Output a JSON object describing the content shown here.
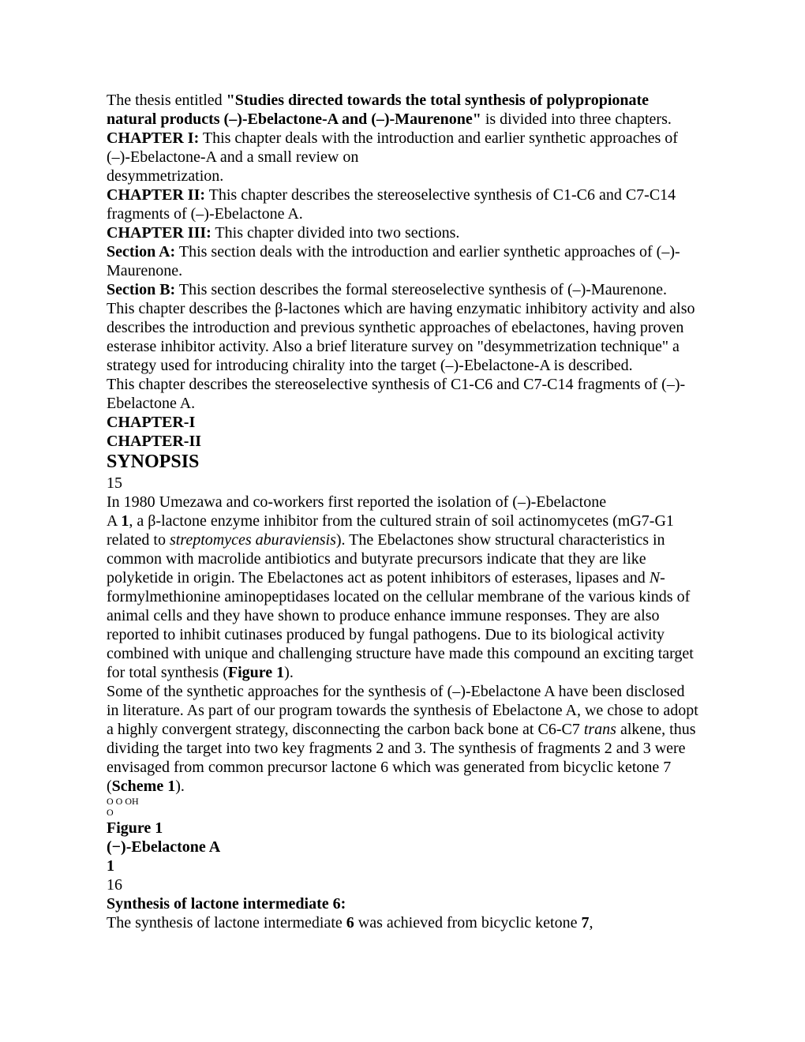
{
  "p1_a": "The thesis entitled ",
  "p1_b": "\"Studies directed towards the total synthesis of polypropionate natural products (–)-Ebelactone-A and (–)-Maurenone\"",
  "p1_c": " is divided into three chapters.",
  "p2_a": "CHAPTER I:",
  "p2_b": " This chapter deals with the introduction and earlier synthetic approaches of (–)-Ebelactone-A and a small review on",
  "p2_c": "desymmetrization.",
  "p3_a": "CHAPTER II:",
  "p3_b": " This chapter describes the stereoselective synthesis of C1-C6 and C7-C14 fragments of (–)-Ebelactone A.",
  "p4_a": "CHAPTER III:",
  "p4_b": " This chapter divided into two sections.",
  "p5_a": "Section A:",
  "p5_b": " This section deals with the introduction and earlier synthetic approaches of (–)-Maurenone.",
  "p6_a": "Section B:",
  "p6_b": " This section describes the formal stereoselective synthesis of (–)-Maurenone.",
  "p7_a": "This chapter describes the ",
  "p7_b": "β",
  "p7_c": "-lactones which are having enzymatic inhibitory activity and also describes the introduction and previous synthetic approaches of ebelactones, having proven esterase inhibitor activity. Also a brief literature survey on \"desymmetrization technique\" a strategy used for introducing chirality into the target (–)-Ebelactone-A is described.",
  "p8": "This chapter describes the stereoselective synthesis of C1-C6 and C7-C14 fragments of (–)-Ebelactone A.",
  "h1": "CHAPTER-I",
  "h2": "CHAPTER-II",
  "h3": "SYNOPSIS",
  "n15": "15",
  "p9_a": "In 1980 Umezawa and co-workers first reported the isolation of (–)-Ebelactone",
  "p9_b": "A ",
  "p9_c": "1",
  "p9_d": ", a ",
  "p9_e": "β",
  "p9_f": "-lactone enzyme inhibitor from the cultured strain of soil actinomycetes (mG7-G1 related to ",
  "p9_g": "streptomyces aburaviensis",
  "p9_h": "). The Ebelactones show structural characteristics in common with macrolide antibiotics and butyrate precursors indicate that they are like polyketide in origin. The Ebelactones act as potent inhibitors of esterases, lipases and ",
  "p9_i": "N",
  "p9_j": "-formylmethionine aminopeptidases located on the cellular membrane of the various kinds of animal cells and they have shown to produce enhance immune responses. They are also reported to inhibit cutinases produced by fungal pathogens. Due to its biological activity combined with unique and challenging structure have made this compound an exciting target for total synthesis (",
  "p9_k": "Figure 1",
  "p9_l": ").",
  "p10_a": "Some of the synthetic approaches for the synthesis of (–)-Ebelactone A have been disclosed in literature. As part of our program towards the synthesis of Ebelactone A, we chose to adopt a highly convergent strategy, disconnecting the carbon back bone at C6-C7 ",
  "p10_b": "trans",
  "p10_c": " alkene, thus dividing the target into two key fragments 2 and 3. The synthesis of fragments 2 and 3 were envisaged from common precursor lactone 6 which was generated from bicyclic ketone 7 (",
  "p10_d": "Scheme 1",
  "p10_e": ").",
  "s1": "O O OH",
  "s2": "O",
  "fig1": "Figure 1",
  "eb": "(−)-Ebelactone A",
  "one": "1",
  "n16": "16",
  "p11_a": "Synthesis of lactone intermediate 6:",
  "p11_b": "The synthesis of lactone intermediate ",
  "p11_c": "6",
  "p11_d": " was achieved from bicyclic ketone ",
  "p11_e": "7",
  "p11_f": ","
}
